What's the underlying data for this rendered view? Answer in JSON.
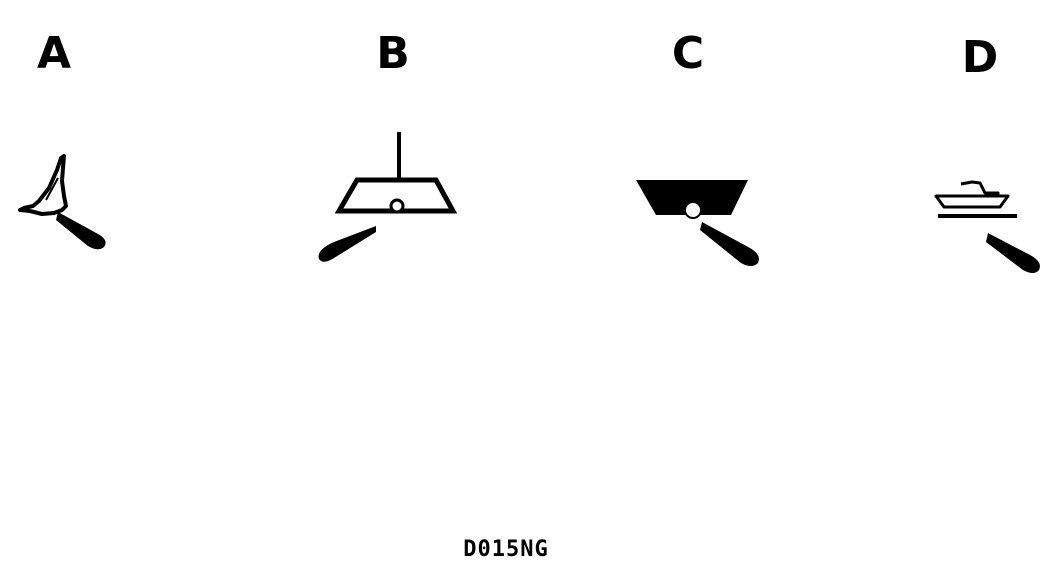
{
  "figure": {
    "options": [
      {
        "id": "A",
        "label": "A",
        "symbol": "beacon-light-icon"
      },
      {
        "id": "B",
        "label": "B",
        "symbol": "buoy-with-topmark-icon"
      },
      {
        "id": "C",
        "label": "C",
        "symbol": "solid-buoy-icon"
      },
      {
        "id": "D",
        "label": "D",
        "symbol": "light-vessel-icon"
      }
    ],
    "code": "D015NG",
    "colors": {
      "ink": "#000000",
      "background": "#ffffff"
    }
  }
}
